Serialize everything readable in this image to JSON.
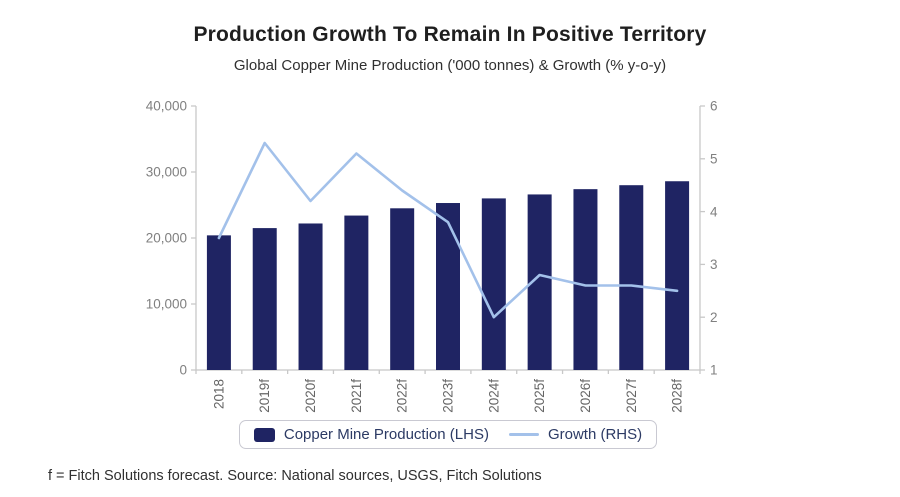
{
  "header": {
    "title": "Production Growth To Remain In Positive Territory",
    "subtitle": "Global Copper Mine Production ('000 tonnes) & Growth (% y-o-y)"
  },
  "legend": {
    "bar_label": "Copper Mine Production (LHS)",
    "line_label": "Growth (RHS)"
  },
  "footnote": "f = Fitch Solutions forecast. Source: National sources, USGS, Fitch Solutions",
  "colors": {
    "bar": "#1f2463",
    "line": "#a3c1ea",
    "axis": "#c8c8c8",
    "y_tick_label": "#808080",
    "x_tick_label": "#666666",
    "title": "#1f1f1f",
    "subtitle": "#303030",
    "footnote": "#303030",
    "legend_text": "#2c3a64",
    "legend_border": "#c9c9d2"
  },
  "chart_data": {
    "type": "bar",
    "title": "Production Growth To Remain In Positive Territory",
    "subtitle": "Global Copper Mine Production ('000 tonnes) & Growth (% y-o-y)",
    "categories": [
      "2018",
      "2019f",
      "2020f",
      "2021f",
      "2022f",
      "2023f",
      "2024f",
      "2025f",
      "2026f",
      "2027f",
      "2028f"
    ],
    "series": [
      {
        "name": "Copper Mine Production (LHS)",
        "type": "bar",
        "axis": "left",
        "values": [
          20400,
          21500,
          22200,
          23400,
          24500,
          25300,
          26000,
          26600,
          27400,
          28000,
          28600
        ]
      },
      {
        "name": "Growth (RHS)",
        "type": "line",
        "axis": "right",
        "values": [
          3.5,
          5.3,
          4.2,
          5.1,
          4.4,
          3.8,
          2.0,
          2.8,
          2.6,
          2.6,
          2.5
        ]
      }
    ],
    "left_axis": {
      "min": 0,
      "max": 40000,
      "ticks": [
        "0",
        "10,000",
        "20,000",
        "30,000",
        "40,000"
      ]
    },
    "right_axis": {
      "min": 1,
      "max": 6,
      "ticks": [
        "1",
        "2",
        "3",
        "4",
        "5",
        "6"
      ]
    },
    "grid": false,
    "legend_position": "bottom"
  }
}
